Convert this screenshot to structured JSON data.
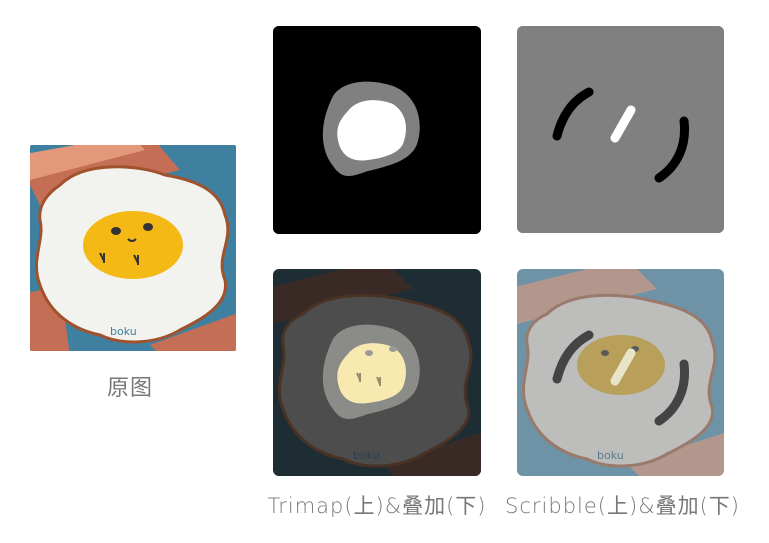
{
  "captions": {
    "original": "原图",
    "trimap": "Trimap(上)&叠加(下)",
    "scribble": "Scribble(上)&叠加(下)"
  },
  "illustration_text": "boku",
  "colors": {
    "bacon_stripe": "#c46e55",
    "bacon_light": "#e39879",
    "plate_blue": "#3f7fa0",
    "egg_white": "#f2f2ee",
    "egg_outline": "#a0522d",
    "yolk": "#f4b915",
    "trimap_black": "#000000",
    "trimap_unknown": "#808080",
    "trimap_foreground": "#ffffff",
    "scribble_background": "#808080",
    "caption_text": "#777777"
  }
}
